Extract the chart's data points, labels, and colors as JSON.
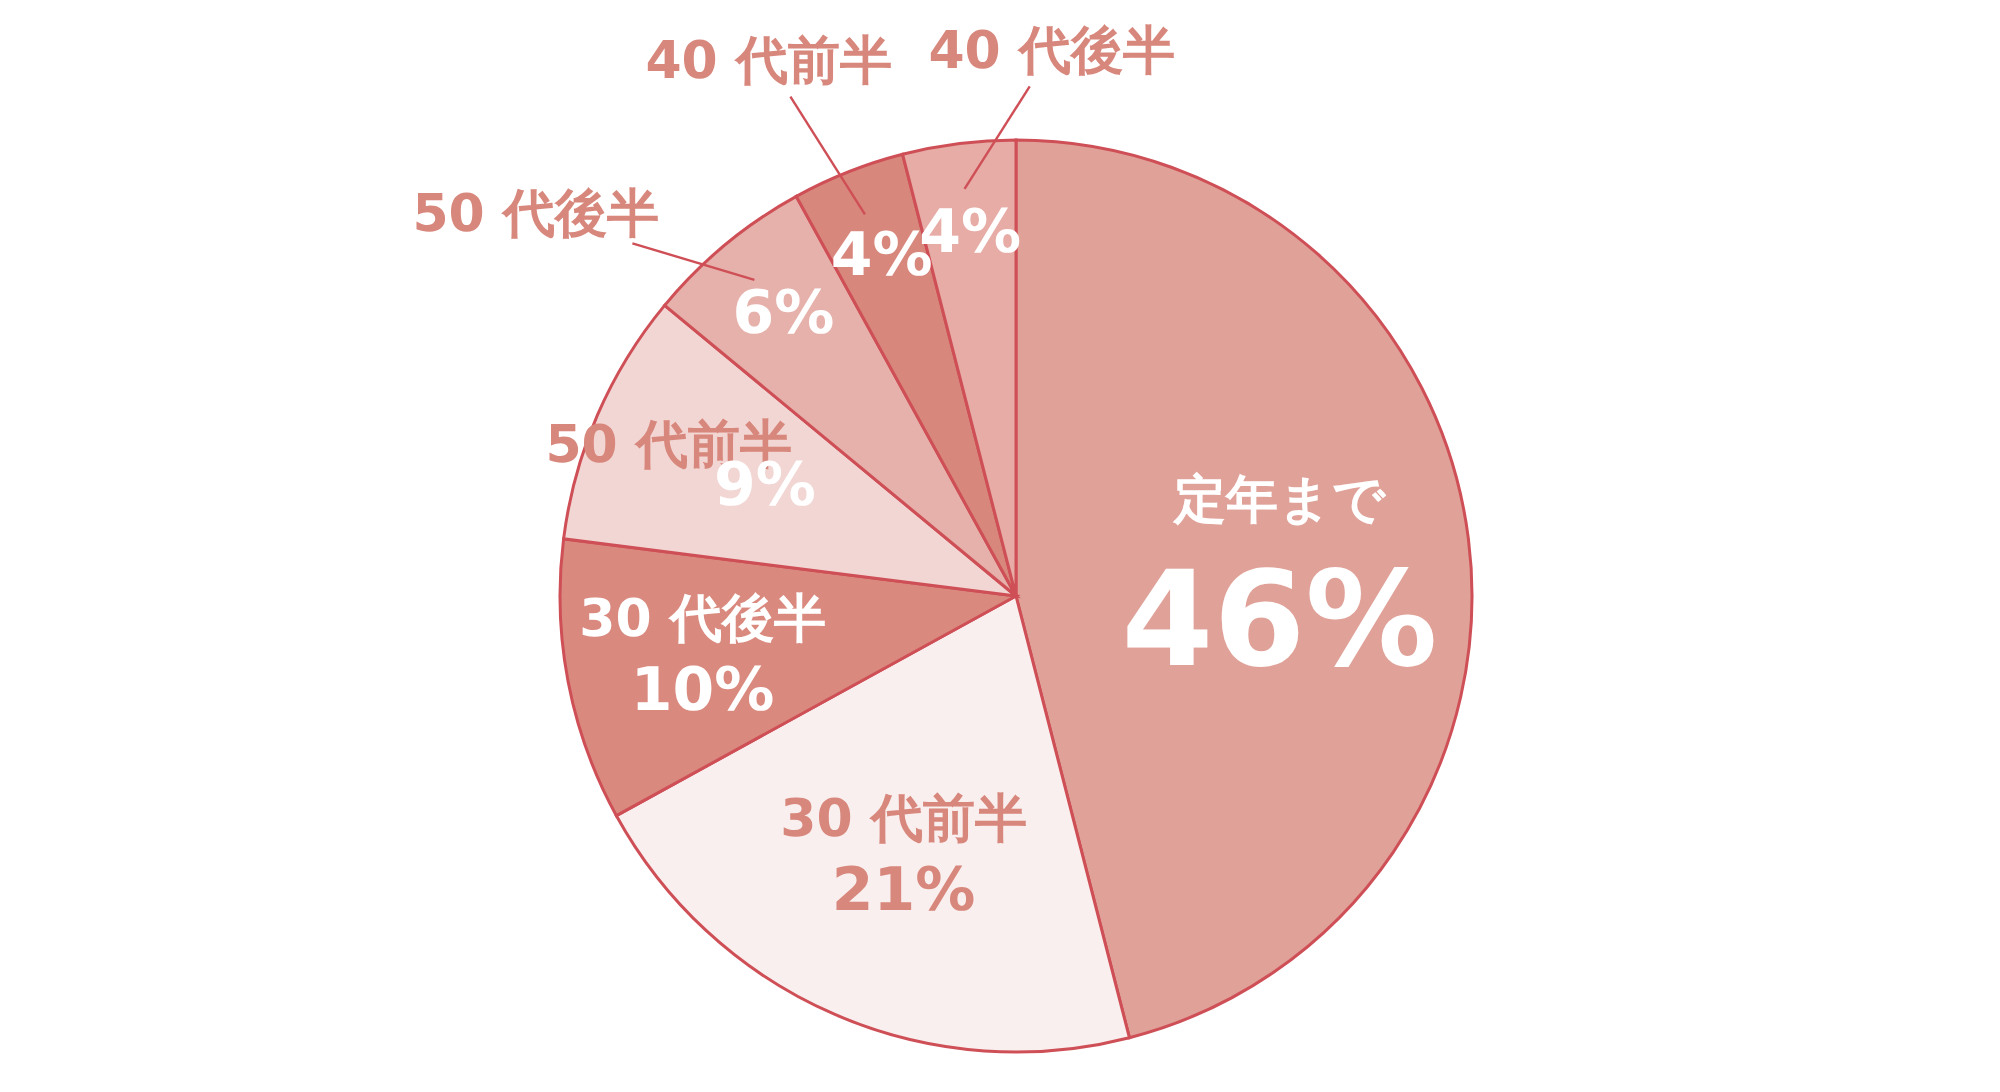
{
  "chart_data": {
    "type": "pie",
    "categories": [
      "定年まで",
      "30 代前半",
      "30 代後半",
      "50 代前半",
      "50 代後半",
      "40 代前半",
      "40 代後半"
    ],
    "values": [
      46,
      21,
      10,
      9,
      6,
      4,
      4
    ],
    "value_labels": [
      "46%",
      "21%",
      "10%",
      "9%",
      "6%",
      "4%",
      "4%"
    ],
    "colors": [
      "#e0a198",
      "#f9efee",
      "#d9897e",
      "#f2d6d3",
      "#e6b1aa",
      "#d8877c",
      "#e6aca5"
    ]
  }
}
